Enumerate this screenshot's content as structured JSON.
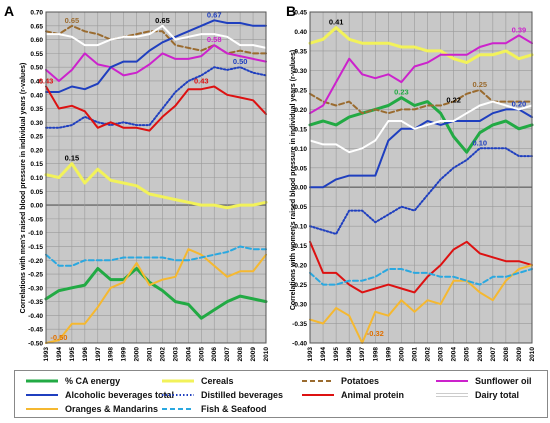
{
  "chart_data": [
    {
      "type": "line",
      "panel_label": "A",
      "ylabel": "Correlations with men's raised blood pressure in individual years (r-values)",
      "ylim": [
        -0.5,
        0.7
      ],
      "yticks": [
        0.7,
        0.65,
        0.6,
        0.55,
        0.5,
        0.45,
        0.4,
        0.35,
        0.3,
        0.25,
        0.2,
        0.15,
        0.1,
        0.05,
        0.0,
        -0.05,
        -0.1,
        -0.15,
        -0.2,
        -0.25,
        -0.3,
        -0.35,
        -0.4,
        -0.45,
        -0.5
      ],
      "ytick_labels": [
        "0.70",
        "0.65",
        "0.60",
        "0.55",
        "0.50",
        "0.45",
        "0.40",
        "0.35",
        "0.30",
        "0.25",
        "0.20",
        "0.15",
        "0.10",
        "0.05",
        "0.00",
        "-0.05",
        "-0.10",
        "-0.15",
        "-0.20",
        "-0.25",
        "-0.30",
        "-0.35",
        "-0.40",
        "-0.45",
        "-0.50"
      ],
      "x": [
        1993,
        1994,
        1995,
        1996,
        1997,
        1998,
        1999,
        2000,
        2001,
        2002,
        2003,
        2004,
        2005,
        2006,
        2007,
        2008,
        2009,
        2010
      ],
      "grid": true,
      "series": [
        {
          "key": "ca",
          "values": [
            -0.34,
            -0.31,
            -0.3,
            -0.29,
            -0.23,
            -0.27,
            -0.27,
            -0.23,
            -0.28,
            -0.31,
            -0.35,
            -0.36,
            -0.41,
            -0.38,
            -0.35,
            -0.33,
            -0.34,
            -0.35
          ]
        },
        {
          "key": "cereals",
          "values": [
            0.11,
            0.1,
            0.15,
            0.08,
            0.13,
            0.09,
            0.08,
            0.07,
            0.04,
            0.03,
            0.02,
            0.01,
            0.0,
            0.0,
            -0.01,
            0.0,
            0.0,
            0.01
          ]
        },
        {
          "key": "potatoes",
          "values": [
            0.63,
            0.62,
            0.65,
            0.63,
            0.62,
            0.6,
            0.61,
            0.62,
            0.63,
            0.63,
            0.58,
            0.57,
            0.56,
            0.58,
            0.55,
            0.56,
            0.55,
            0.55
          ]
        },
        {
          "key": "sunflower",
          "values": [
            0.49,
            0.45,
            0.49,
            0.55,
            0.51,
            0.5,
            0.47,
            0.48,
            0.51,
            0.55,
            0.53,
            0.53,
            0.54,
            0.58,
            0.55,
            0.54,
            0.53,
            0.52
          ]
        },
        {
          "key": "alcoholic",
          "values": [
            0.41,
            0.41,
            0.43,
            0.42,
            0.44,
            0.5,
            0.52,
            0.52,
            0.56,
            0.59,
            0.61,
            0.63,
            0.65,
            0.67,
            0.66,
            0.66,
            0.65,
            0.65
          ]
        },
        {
          "key": "distilled",
          "values": [
            0.28,
            0.28,
            0.29,
            0.32,
            0.3,
            0.29,
            0.3,
            0.29,
            0.29,
            0.35,
            0.41,
            0.45,
            0.47,
            0.5,
            0.49,
            0.5,
            0.48,
            0.47
          ]
        },
        {
          "key": "animal",
          "values": [
            0.43,
            0.35,
            0.36,
            0.34,
            0.28,
            0.3,
            0.28,
            0.28,
            0.27,
            0.32,
            0.36,
            0.42,
            0.42,
            0.43,
            0.4,
            0.39,
            0.38,
            0.33
          ]
        },
        {
          "key": "dairy",
          "values": [
            0.62,
            0.62,
            0.61,
            0.58,
            0.58,
            0.6,
            0.61,
            0.61,
            0.62,
            0.65,
            0.6,
            0.61,
            0.62,
            0.62,
            0.61,
            0.58,
            0.58,
            0.57
          ]
        },
        {
          "key": "oranges",
          "values": [
            -0.5,
            -0.49,
            -0.43,
            -0.43,
            -0.37,
            -0.3,
            -0.28,
            -0.21,
            -0.29,
            -0.27,
            -0.26,
            -0.16,
            -0.18,
            -0.22,
            -0.26,
            -0.24,
            -0.24,
            -0.18
          ]
        },
        {
          "key": "fish",
          "values": [
            -0.18,
            -0.22,
            -0.22,
            -0.2,
            -0.2,
            -0.2,
            -0.19,
            -0.19,
            -0.19,
            -0.19,
            -0.2,
            -0.2,
            -0.19,
            -0.18,
            -0.17,
            -0.15,
            -0.16,
            -0.16
          ]
        }
      ],
      "annotations": [
        {
          "text": "0.65",
          "x": 1995,
          "y": 0.65,
          "color": "#9a6b2f"
        },
        {
          "text": "0.65",
          "x": 2002,
          "y": 0.65,
          "color": "#000000"
        },
        {
          "text": "0.67",
          "x": 2006,
          "y": 0.67,
          "color": "#1f3fbf"
        },
        {
          "text": "0.43",
          "x": 1993,
          "y": 0.43,
          "color": "#dd1111"
        },
        {
          "text": "0.58",
          "x": 2006,
          "y": 0.58,
          "color": "#cc22cc"
        },
        {
          "text": "0.43",
          "x": 2005,
          "y": 0.43,
          "color": "#dd1111"
        },
        {
          "text": "0.50",
          "x": 2008,
          "y": 0.5,
          "color": "#1f3fbf"
        },
        {
          "text": "0.15",
          "x": 1995,
          "y": 0.15,
          "color": "#000000"
        },
        {
          "text": "-0.50",
          "x": 1994,
          "y": -0.5,
          "color": "#e07000"
        }
      ]
    },
    {
      "type": "line",
      "panel_label": "B",
      "ylabel": "Correlations with women's raised blood pressure in individual years (r-values)",
      "ylim": [
        -0.4,
        0.45
      ],
      "yticks": [
        0.45,
        0.4,
        0.35,
        0.3,
        0.25,
        0.2,
        0.15,
        0.1,
        0.05,
        0.0,
        -0.05,
        -0.1,
        -0.15,
        -0.2,
        -0.25,
        -0.3,
        -0.35,
        -0.4
      ],
      "ytick_labels": [
        "0.45",
        "0.40",
        "0.35",
        "0.30",
        "0.25",
        "0.20",
        "0.15",
        "0.10",
        "0.05",
        "0.00",
        "-0.05",
        "-0.10",
        "-0.15",
        "-0.20",
        "-0.25",
        "-0.30",
        "-0.35",
        "-0.40"
      ],
      "x": [
        1993,
        1994,
        1995,
        1996,
        1997,
        1998,
        1999,
        2000,
        2001,
        2002,
        2003,
        2004,
        2005,
        2006,
        2007,
        2008,
        2009,
        2010
      ],
      "grid": true,
      "series": [
        {
          "key": "ca",
          "values": [
            0.16,
            0.17,
            0.16,
            0.18,
            0.19,
            0.2,
            0.21,
            0.23,
            0.21,
            0.22,
            0.19,
            0.13,
            0.09,
            0.14,
            0.16,
            0.17,
            0.15,
            0.16
          ]
        },
        {
          "key": "cereals",
          "values": [
            0.37,
            0.38,
            0.41,
            0.38,
            0.37,
            0.37,
            0.37,
            0.36,
            0.36,
            0.35,
            0.35,
            0.33,
            0.32,
            0.34,
            0.34,
            0.35,
            0.33,
            0.34
          ]
        },
        {
          "key": "potatoes",
          "values": [
            0.24,
            0.22,
            0.21,
            0.22,
            0.19,
            0.2,
            0.19,
            0.2,
            0.2,
            0.21,
            0.21,
            0.22,
            0.24,
            0.25,
            0.22,
            0.22,
            0.22,
            0.22
          ]
        },
        {
          "key": "sunflower",
          "values": [
            0.19,
            0.21,
            0.27,
            0.33,
            0.29,
            0.28,
            0.29,
            0.27,
            0.31,
            0.32,
            0.34,
            0.34,
            0.34,
            0.36,
            0.37,
            0.37,
            0.39,
            0.37
          ]
        },
        {
          "key": "alcoholic",
          "values": [
            0.0,
            0.0,
            0.02,
            0.03,
            0.03,
            0.03,
            0.12,
            0.15,
            0.15,
            0.17,
            0.16,
            0.17,
            0.17,
            0.17,
            0.19,
            0.2,
            0.2,
            0.18
          ]
        },
        {
          "key": "distilled",
          "values": [
            -0.1,
            -0.11,
            -0.12,
            -0.06,
            -0.06,
            -0.09,
            -0.07,
            -0.05,
            -0.06,
            -0.02,
            0.02,
            0.05,
            0.07,
            0.1,
            0.1,
            0.1,
            0.08,
            0.08
          ]
        },
        {
          "key": "animal",
          "values": [
            -0.14,
            -0.22,
            -0.22,
            -0.25,
            -0.27,
            -0.26,
            -0.25,
            -0.26,
            -0.27,
            -0.23,
            -0.2,
            -0.16,
            -0.14,
            -0.17,
            -0.18,
            -0.19,
            -0.19,
            -0.2
          ]
        },
        {
          "key": "dairy",
          "values": [
            0.12,
            0.11,
            0.11,
            0.09,
            0.1,
            0.12,
            0.17,
            0.17,
            0.15,
            0.16,
            0.17,
            0.17,
            0.19,
            0.21,
            0.22,
            0.21,
            0.2,
            0.21
          ]
        },
        {
          "key": "oranges",
          "values": [
            -0.34,
            -0.35,
            -0.31,
            -0.33,
            -0.4,
            -0.32,
            -0.33,
            -0.29,
            -0.32,
            -0.29,
            -0.3,
            -0.24,
            -0.24,
            -0.27,
            -0.29,
            -0.24,
            -0.21,
            -0.2
          ]
        },
        {
          "key": "fish",
          "values": [
            -0.22,
            -0.25,
            -0.25,
            -0.24,
            -0.24,
            -0.23,
            -0.21,
            -0.21,
            -0.22,
            -0.22,
            -0.23,
            -0.23,
            -0.24,
            -0.25,
            -0.23,
            -0.23,
            -0.22,
            -0.21
          ]
        }
      ],
      "annotations": [
        {
          "text": "0.41",
          "x": 1995,
          "y": 0.41,
          "color": "#000000"
        },
        {
          "text": "0.23",
          "x": 2000,
          "y": 0.23,
          "color": "#22aa44"
        },
        {
          "text": "0.25",
          "x": 2006,
          "y": 0.25,
          "color": "#9a6b2f"
        },
        {
          "text": "0.22",
          "x": 2004,
          "y": 0.21,
          "color": "#000000"
        },
        {
          "text": "0.39",
          "x": 2009,
          "y": 0.39,
          "color": "#cc22cc"
        },
        {
          "text": "0.20",
          "x": 2009,
          "y": 0.2,
          "color": "#1f3fbf"
        },
        {
          "text": "0.10",
          "x": 2006,
          "y": 0.1,
          "color": "#1f3fbf"
        },
        {
          "text": "-0.32",
          "x": 1998,
          "y": -0.39,
          "color": "#e07000"
        }
      ]
    }
  ],
  "legend": [
    {
      "key": "ca",
      "label": "% CA energy",
      "color": "#22aa44",
      "style": "solid",
      "width": 3
    },
    {
      "key": "cereals",
      "label": "Cereals",
      "color": "#f2f25a",
      "style": "solid",
      "width": 3
    },
    {
      "key": "potatoes",
      "label": "Potatoes",
      "color": "#9a6b2f",
      "style": "dashed",
      "width": 2
    },
    {
      "key": "sunflower",
      "label": "Sunflower oil",
      "color": "#cc22cc",
      "style": "solid",
      "width": 2
    },
    {
      "key": "alcoholic",
      "label": "Alcoholic beverages total",
      "color": "#1f3fbf",
      "style": "solid",
      "width": 2
    },
    {
      "key": "distilled",
      "label": "Distilled beverages",
      "color": "#1f3fbf",
      "style": "dotted",
      "width": 2
    },
    {
      "key": "animal",
      "label": "Animal protein",
      "color": "#dd1111",
      "style": "solid",
      "width": 2
    },
    {
      "key": "dairy",
      "label": "Dairy total",
      "color": "#ffffff",
      "style": "solid",
      "width": 2
    },
    {
      "key": "oranges",
      "label": "Oranges & Mandarins",
      "color": "#f5b830",
      "style": "solid",
      "width": 2
    },
    {
      "key": "fish",
      "label": "Fish & Seafood",
      "color": "#2aa8e0",
      "style": "dashed",
      "width": 2
    }
  ],
  "colors": {
    "plot_background": "#c8c8c8",
    "gridline": "#9a9a9a"
  }
}
